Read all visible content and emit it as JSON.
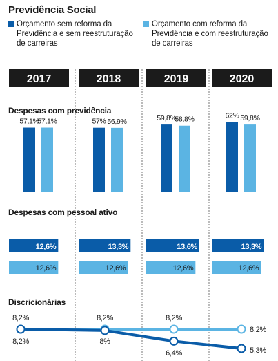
{
  "chart_data": {
    "title": "Previdência Social",
    "years": [
      "2017",
      "2018",
      "2019",
      "2020"
    ],
    "series": [
      {
        "name": "Orçamento sem reforma da Previdência e sem reestruturação de carreiras",
        "color": "#0a5ca8"
      },
      {
        "name": "Orçamento com reforma da Previdência e com reestruturação de carreiras",
        "color": "#5bb4e3"
      }
    ],
    "panels": [
      {
        "title": "Despesas com previdência",
        "type": "bar",
        "ylim": [
          0,
          70
        ],
        "values": [
          {
            "label": "57,1%",
            "value": 57.1
          },
          {
            "label": "57%",
            "value": 57.0
          },
          {
            "label": "59,8%",
            "value": 59.8
          },
          {
            "label": "62%",
            "value": 62.0
          }
        ],
        "values2": [
          {
            "label": "57,1%",
            "value": 57.1
          },
          {
            "label": "56,9%",
            "value": 56.9
          },
          {
            "label": "58,8%",
            "value": 58.8
          },
          {
            "label": "59,8%",
            "value": 59.8
          }
        ]
      },
      {
        "title": "Despesas com pessoal ativo",
        "type": "bar-horizontal",
        "values": [
          {
            "label": "12,6%",
            "value": 12.6
          },
          {
            "label": "13,3%",
            "value": 13.3
          },
          {
            "label": "13,6%",
            "value": 13.6
          },
          {
            "label": "13,3%",
            "value": 13.3
          }
        ],
        "values2": [
          {
            "label": "12,6%",
            "value": 12.6
          },
          {
            "label": "12,6%",
            "value": 12.6
          },
          {
            "label": "12,6%",
            "value": 12.6
          },
          {
            "label": "12,6%",
            "value": 12.6
          }
        ]
      },
      {
        "title": "Discricionárias",
        "type": "line",
        "values": [
          {
            "label": "8,2%",
            "value": 8.2
          },
          {
            "label": "8%",
            "value": 8.0
          },
          {
            "label": "6,4%",
            "value": 6.4
          },
          {
            "label": "5,3%",
            "value": 5.3
          }
        ],
        "values2": [
          {
            "label": "8,2%",
            "value": 8.2
          },
          {
            "label": "8,2%",
            "value": 8.2
          },
          {
            "label": "8,2%",
            "value": 8.2
          },
          {
            "label": "8,2%",
            "value": 8.2
          }
        ]
      }
    ]
  }
}
